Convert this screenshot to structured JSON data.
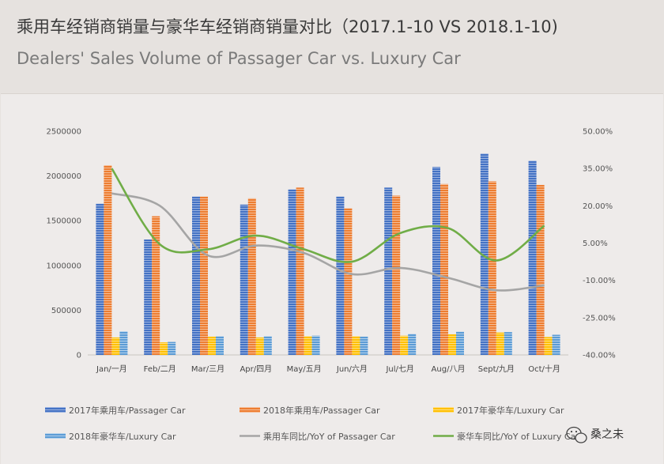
{
  "header": {
    "title_cn": "乘用车经销商销量与豪华车经销商销量对比（2017.1-10 VS 2018.1-10)",
    "title_en": "Dealers' Sales Volume of Passager Car vs. Luxury Car"
  },
  "chart_data": {
    "type": "bar",
    "categories": [
      "Jan/一月",
      "Feb/二月",
      "Mar/三月",
      "Apr/四月",
      "May/五月",
      "Jun/六月",
      "Jul/七月",
      "Aug/八月",
      "Sept/九月",
      "Oct/十月"
    ],
    "series": [
      {
        "name": "2017年乘用车/Passager Car",
        "kind": "bar",
        "axis": "left",
        "color": "#4472c4",
        "values": [
          1690000,
          1290000,
          1770000,
          1680000,
          1850000,
          1770000,
          1870000,
          2100000,
          2250000,
          2170000
        ]
      },
      {
        "name": "2018年乘用车/Passager Car",
        "kind": "bar",
        "axis": "left",
        "color": "#ed7d31",
        "values": [
          2120000,
          1550000,
          1770000,
          1750000,
          1870000,
          1640000,
          1780000,
          1910000,
          1940000,
          1900000
        ]
      },
      {
        "name": "2017年豪华车/Luxury Car",
        "kind": "bar",
        "axis": "left",
        "color": "#ffc000",
        "values": [
          195000,
          140000,
          205000,
          195000,
          210000,
          210000,
          215000,
          230000,
          250000,
          200000
        ]
      },
      {
        "name": "2018年豪华车/Luxury Car",
        "kind": "bar",
        "axis": "left",
        "color": "#5b9bd5",
        "values": [
          265000,
          145000,
          210000,
          210000,
          215000,
          205000,
          235000,
          260000,
          255000,
          225000
        ]
      },
      {
        "name": "乘用车同比/YoY of Passager Car",
        "kind": "line",
        "axis": "right",
        "color": "#a5a5a5",
        "values": [
          0.25,
          0.2,
          0.0,
          0.04,
          0.01,
          -0.075,
          -0.05,
          -0.09,
          -0.14,
          -0.12
        ]
      },
      {
        "name": "豪华车同比/YoY of Luxury Car",
        "kind": "line",
        "axis": "right",
        "color": "#70ad47",
        "values": [
          0.35,
          0.045,
          0.025,
          0.08,
          0.025,
          -0.025,
          0.09,
          0.11,
          -0.02,
          0.12
        ]
      }
    ],
    "y_left": {
      "min": 0,
      "max": 2500000,
      "ticks": [
        "0",
        "500000",
        "1000000",
        "1500000",
        "2000000",
        "2500000"
      ]
    },
    "y_right": {
      "min": -0.4,
      "max": 0.5,
      "ticks": [
        "-40.00%",
        "-25.00%",
        "-10.00%",
        "5.00%",
        "20.00%",
        "35.00%",
        "50.00%"
      ]
    },
    "grid": false,
    "legend_position": "bottom"
  },
  "watermark": {
    "text": "桑之未",
    "icon": "wechat-icon"
  }
}
